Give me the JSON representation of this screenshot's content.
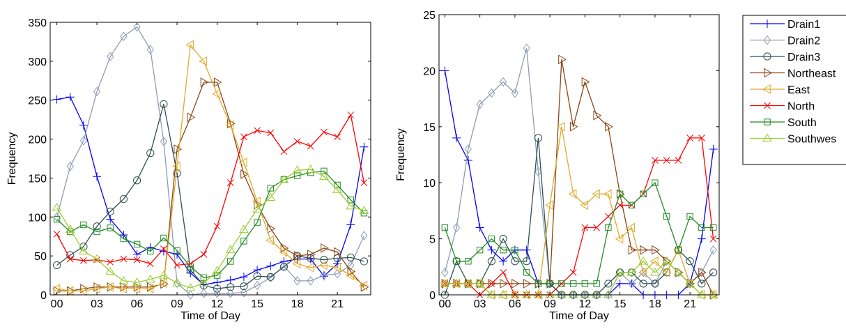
{
  "legend": {
    "entries": [
      {
        "name": "Drain1",
        "color": "#0000ff",
        "marker": "plus"
      },
      {
        "name": "Drain2",
        "color": "#8c9cb4",
        "marker": "diamond"
      },
      {
        "name": "Drain3",
        "color": "#2f4f4f",
        "marker": "circle"
      },
      {
        "name": "Northeast",
        "color": "#8b4513",
        "marker": "tri-right"
      },
      {
        "name": "East",
        "color": "#e0a92a",
        "marker": "tri-left"
      },
      {
        "name": "North",
        "color": "#ff0000",
        "marker": "x"
      },
      {
        "name": "South",
        "color": "#228b22",
        "marker": "square"
      },
      {
        "name": "Southwes",
        "color": "#9acd32",
        "marker": "tri-up"
      }
    ]
  },
  "chart_data": [
    {
      "type": "line",
      "xlabel": "Time of Day",
      "ylabel": "Frequency",
      "xlim": [
        -0.5,
        23.5
      ],
      "ylim": [
        0,
        350
      ],
      "xticks": [
        {
          "v": 0,
          "label": "00"
        },
        {
          "v": 3,
          "label": "03"
        },
        {
          "v": 6,
          "label": "06"
        },
        {
          "v": 9,
          "label": "09"
        },
        {
          "v": 12,
          "label": "12"
        },
        {
          "v": 15,
          "label": "15"
        },
        {
          "v": 18,
          "label": "18"
        },
        {
          "v": 21,
          "label": "21"
        }
      ],
      "yticks": [
        0,
        50,
        100,
        150,
        200,
        250,
        300,
        350
      ],
      "x": [
        0,
        1,
        2,
        3,
        4,
        5,
        6,
        7,
        8,
        9,
        10,
        11,
        12,
        13,
        14,
        15,
        16,
        17,
        18,
        19,
        20,
        21,
        22,
        23
      ],
      "series": [
        {
          "name": "Drain1",
          "values": [
            251,
            254,
            218,
            152,
            97,
            77,
            52,
            61,
            56,
            52,
            28,
            13,
            16,
            19,
            23,
            32,
            37,
            43,
            46,
            46,
            24,
            40,
            90,
            190
          ]
        },
        {
          "name": "Drain2",
          "values": [
            100,
            165,
            198,
            261,
            306,
            332,
            344,
            315,
            197,
            15,
            0,
            2,
            2,
            2,
            3,
            12,
            22,
            37,
            18,
            18,
            25,
            27,
            38,
            76
          ]
        },
        {
          "name": "Drain3",
          "values": [
            38,
            51,
            62,
            88,
            107,
            123,
            147,
            182,
            245,
            156,
            32,
            12,
            8,
            10,
            11,
            24,
            23,
            36,
            50,
            47,
            45,
            47,
            48,
            43
          ]
        },
        {
          "name": "Northeast",
          "values": [
            5,
            5,
            8,
            10,
            10,
            10,
            10,
            10,
            14,
            187,
            228,
            273,
            273,
            220,
            155,
            116,
            85,
            60,
            50,
            52,
            60,
            55,
            30,
            10
          ]
        },
        {
          "name": "East",
          "values": [
            8,
            5,
            5,
            8,
            10,
            8,
            8,
            8,
            15,
            165,
            321,
            300,
            258,
            218,
            170,
            120,
            70,
            55,
            40,
            35,
            38,
            35,
            25,
            12
          ]
        },
        {
          "name": "North",
          "values": [
            78,
            46,
            44,
            45,
            42,
            46,
            45,
            40,
            59,
            38,
            40,
            52,
            88,
            144,
            203,
            211,
            208,
            184,
            197,
            191,
            209,
            203,
            231,
            144
          ]
        },
        {
          "name": "South",
          "values": [
            97,
            81,
            90,
            81,
            86,
            72,
            65,
            56,
            73,
            57,
            36,
            22,
            25,
            43,
            69,
            93,
            137,
            148,
            153,
            157,
            159,
            141,
            122,
            105
          ]
        },
        {
          "name": "Southwes",
          "values": [
            112,
            84,
            56,
            46,
            30,
            18,
            16,
            20,
            25,
            15,
            9,
            15,
            31,
            58,
            84,
            110,
            125,
            148,
            160,
            161,
            152,
            135,
            114,
            108
          ]
        }
      ]
    },
    {
      "type": "line",
      "xlabel": "Time of Day",
      "ylabel": "Frequency",
      "xlim": [
        -0.5,
        23.5
      ],
      "ylim": [
        0,
        25
      ],
      "xticks": [
        {
          "v": 0,
          "label": "00"
        },
        {
          "v": 3,
          "label": "03"
        },
        {
          "v": 6,
          "label": "06"
        },
        {
          "v": 9,
          "label": "09"
        },
        {
          "v": 12,
          "label": "12"
        },
        {
          "v": 15,
          "label": "15"
        },
        {
          "v": 18,
          "label": "18"
        },
        {
          "v": 21,
          "label": "21"
        }
      ],
      "yticks": [
        0,
        5,
        10,
        15,
        20,
        25
      ],
      "x": [
        0,
        1,
        2,
        3,
        4,
        5,
        6,
        7,
        8,
        9,
        10,
        11,
        12,
        13,
        14,
        15,
        16,
        17,
        18,
        19,
        20,
        21,
        22,
        23
      ],
      "series": [
        {
          "name": "Drain1",
          "values": [
            20,
            14,
            12,
            6,
            4,
            3,
            4,
            4,
            1,
            1,
            0,
            0,
            0,
            0,
            0,
            1,
            1,
            0,
            0,
            0,
            0,
            1,
            5,
            13
          ]
        },
        {
          "name": "Drain2",
          "values": [
            2,
            6,
            13,
            17,
            18,
            19,
            18,
            22,
            11,
            1,
            0,
            0,
            0,
            0,
            0,
            2,
            1,
            2,
            1,
            3,
            2,
            1,
            2,
            4
          ]
        },
        {
          "name": "Drain3",
          "values": [
            0,
            3,
            1,
            1,
            3,
            5,
            3,
            3,
            14,
            1,
            0,
            0,
            0,
            0,
            1,
            2,
            2,
            1,
            1,
            2,
            4,
            3,
            1,
            2
          ]
        },
        {
          "name": "Northeast",
          "values": [
            1,
            1,
            1,
            1,
            1,
            1,
            1,
            1,
            1,
            1,
            21,
            15,
            19,
            16,
            15,
            9,
            4,
            4,
            4,
            3,
            2,
            1,
            2,
            0
          ]
        },
        {
          "name": "East",
          "values": [
            1,
            1,
            1,
            1,
            0,
            0,
            0,
            0,
            0,
            8,
            15,
            9,
            8,
            9,
            9,
            5,
            6,
            2,
            3,
            2,
            4,
            1,
            0,
            0
          ]
        },
        {
          "name": "North",
          "values": [
            1,
            1,
            1,
            0,
            1,
            2,
            0,
            0,
            0,
            0,
            1,
            2,
            6,
            6,
            7,
            8,
            8,
            9,
            12,
            12,
            12,
            14,
            14,
            5
          ]
        },
        {
          "name": "South",
          "values": [
            6,
            3,
            3,
            4,
            5,
            4,
            4,
            2,
            1,
            1,
            1,
            1,
            1,
            1,
            6,
            9,
            8,
            9,
            10,
            7,
            4,
            7,
            6,
            6
          ]
        },
        {
          "name": "Southwes",
          "values": [
            1,
            1,
            1,
            1,
            0,
            0,
            0,
            0,
            0,
            0,
            0,
            0,
            0,
            0,
            0,
            2,
            2,
            3,
            2,
            3,
            2,
            1,
            0,
            0
          ]
        }
      ]
    }
  ]
}
